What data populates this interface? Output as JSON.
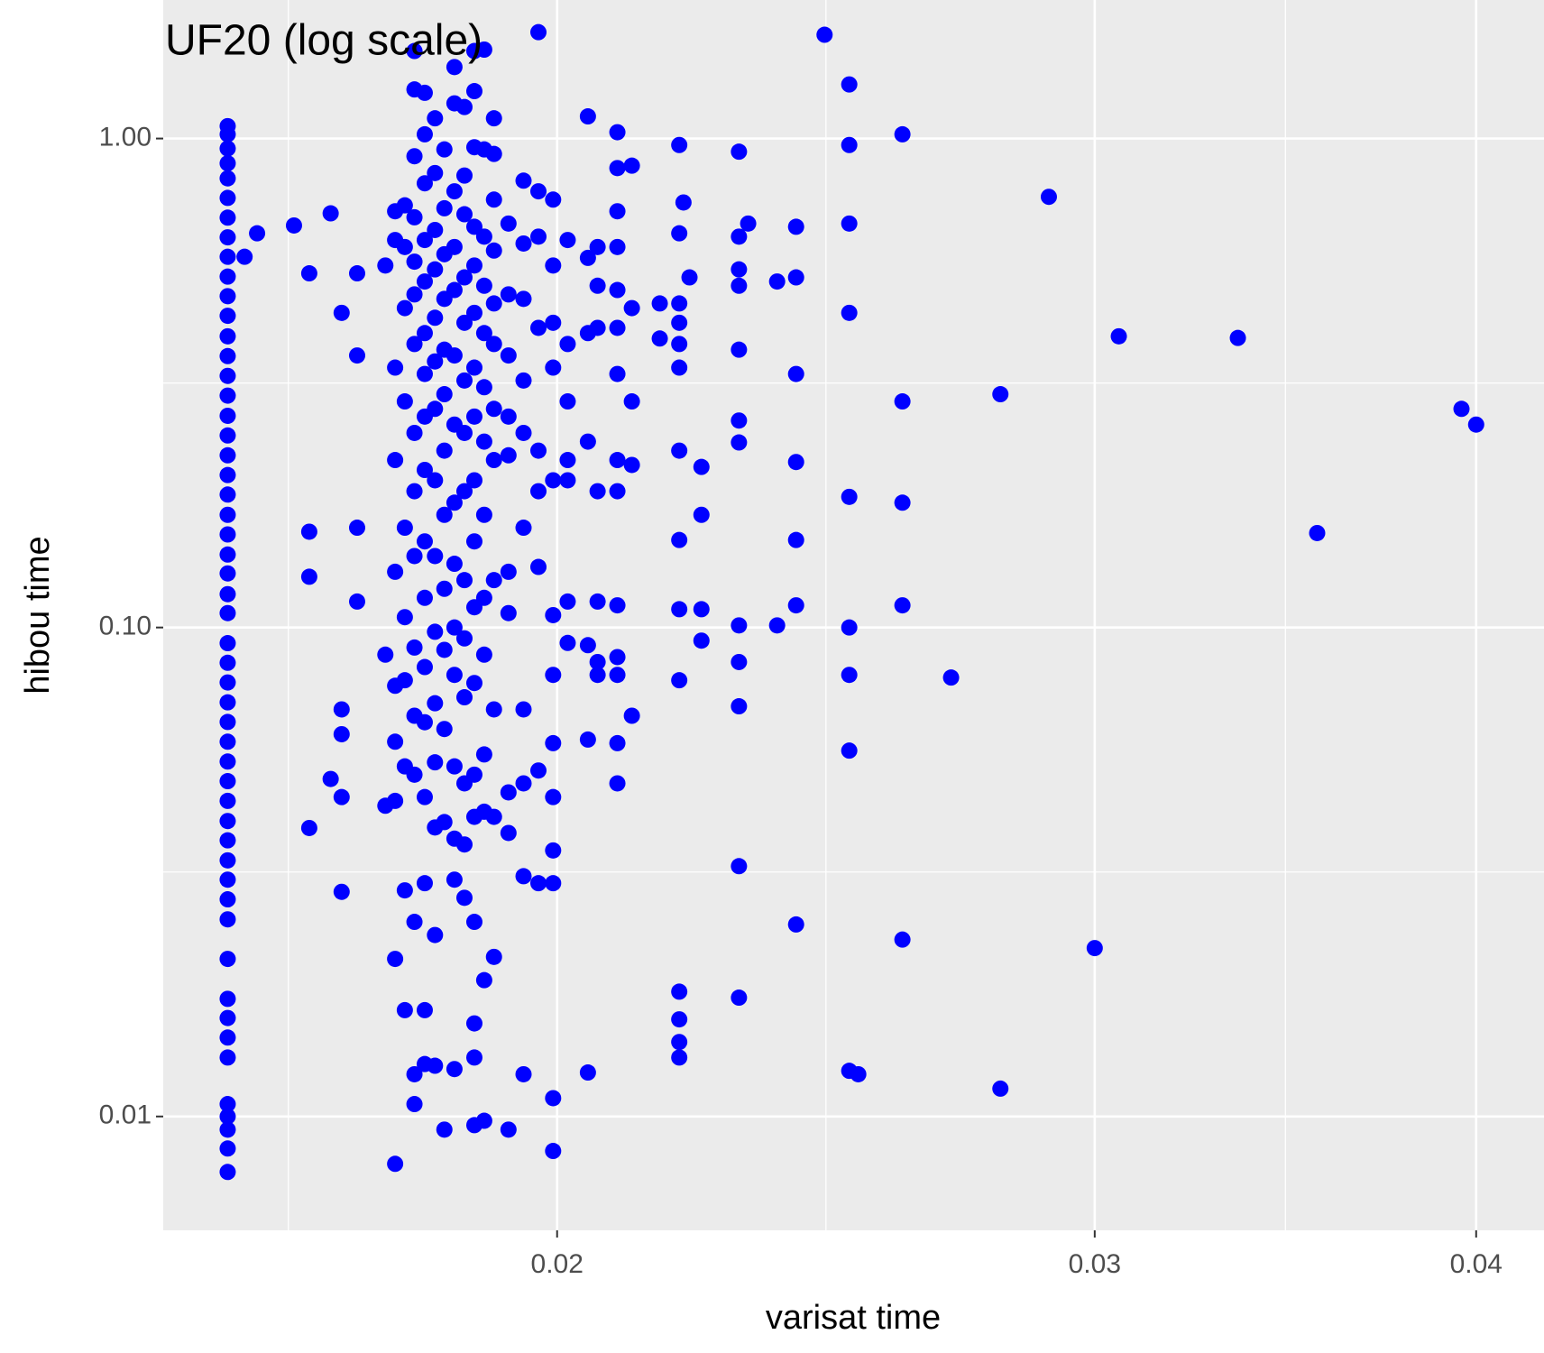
{
  "chart_data": {
    "type": "scatter",
    "title": "UF20 (log scale)",
    "x_label": "varisat time",
    "y_label": "hibou time",
    "color": "#0000ff",
    "grid": true,
    "x_log": true,
    "y_log": true,
    "xlim": [
      0.01486,
      0.0421
    ],
    "ylim": [
      0.00585,
      1.92
    ],
    "xticks": [
      0.02,
      0.03,
      0.04
    ],
    "yticks": [
      {
        "value": 0.01,
        "label": "0.01"
      },
      {
        "value": 0.1,
        "label": "0.10"
      },
      {
        "value": 1,
        "label": "1.00"
      }
    ],
    "x": [
      0.0156,
      0.0156,
      0.0156,
      0.0156,
      0.0156,
      0.0156,
      0.0156,
      0.0156,
      0.0156,
      0.0156,
      0.0156,
      0.0156,
      0.0156,
      0.0156,
      0.0156,
      0.0156,
      0.0156,
      0.0156,
      0.0156,
      0.0156,
      0.0156,
      0.0156,
      0.0156,
      0.0156,
      0.0156,
      0.0156,
      0.0156,
      0.0156,
      0.0156,
      0.0156,
      0.0156,
      0.0156,
      0.0156,
      0.0156,
      0.0156,
      0.0156,
      0.0156,
      0.0156,
      0.0156,
      0.0156,
      0.0156,
      0.0156,
      0.0156,
      0.0156,
      0.0156,
      0.0156,
      0.0156,
      0.0156,
      0.0156,
      0.0156,
      0.0156,
      0.0156,
      0.0158,
      0.01595,
      0.0164,
      0.01659,
      0.01659,
      0.01659,
      0.01659,
      0.01686,
      0.01686,
      0.017,
      0.017,
      0.017,
      0.017,
      0.017,
      0.0172,
      0.0172,
      0.0172,
      0.0172,
      0.01757,
      0.01757,
      0.01757,
      0.0177,
      0.0177,
      0.0177,
      0.0177,
      0.0177,
      0.0177,
      0.0177,
      0.0177,
      0.0177,
      0.0177,
      0.01783,
      0.01783,
      0.01783,
      0.01783,
      0.01783,
      0.01783,
      0.01783,
      0.01783,
      0.01783,
      0.01783,
      0.01796,
      0.01796,
      0.01796,
      0.01796,
      0.01796,
      0.01796,
      0.01796,
      0.01796,
      0.01796,
      0.01796,
      0.01796,
      0.01796,
      0.01796,
      0.01796,
      0.01796,
      0.01796,
      0.0181,
      0.0181,
      0.0181,
      0.0181,
      0.0181,
      0.0181,
      0.0181,
      0.0181,
      0.0181,
      0.0181,
      0.0181,
      0.0181,
      0.0181,
      0.0181,
      0.0181,
      0.0181,
      0.0181,
      0.01824,
      0.01824,
      0.01824,
      0.01824,
      0.01824,
      0.01824,
      0.01824,
      0.01824,
      0.01824,
      0.01824,
      0.01824,
      0.01824,
      0.01824,
      0.01824,
      0.01824,
      0.01837,
      0.01837,
      0.01837,
      0.01837,
      0.01837,
      0.01837,
      0.01837,
      0.01837,
      0.01837,
      0.01837,
      0.01837,
      0.01837,
      0.01837,
      0.01851,
      0.01851,
      0.01851,
      0.01851,
      0.01851,
      0.01851,
      0.01851,
      0.01851,
      0.01851,
      0.01851,
      0.01851,
      0.01851,
      0.01851,
      0.01851,
      0.01851,
      0.01865,
      0.01865,
      0.01865,
      0.01865,
      0.01865,
      0.01865,
      0.01865,
      0.01865,
      0.01865,
      0.01865,
      0.01865,
      0.01865,
      0.01865,
      0.01865,
      0.01879,
      0.01879,
      0.01879,
      0.01879,
      0.01879,
      0.01879,
      0.01879,
      0.01879,
      0.01879,
      0.01879,
      0.01879,
      0.01879,
      0.01879,
      0.01879,
      0.01879,
      0.01879,
      0.01879,
      0.01879,
      0.01893,
      0.01893,
      0.01893,
      0.01893,
      0.01893,
      0.01893,
      0.01893,
      0.01893,
      0.01893,
      0.01893,
      0.01893,
      0.01893,
      0.01893,
      0.01893,
      0.01907,
      0.01907,
      0.01907,
      0.01907,
      0.01907,
      0.01907,
      0.01907,
      0.01907,
      0.01907,
      0.01907,
      0.01907,
      0.01907,
      0.01928,
      0.01928,
      0.01928,
      0.01928,
      0.01928,
      0.01928,
      0.01928,
      0.01928,
      0.01928,
      0.01928,
      0.0195,
      0.0195,
      0.0195,
      0.0195,
      0.0195,
      0.0195,
      0.0195,
      0.0195,
      0.0195,
      0.0195,
      0.01972,
      0.01972,
      0.01972,
      0.01972,
      0.01972,
      0.01972,
      0.01972,
      0.01972,
      0.01972,
      0.01994,
      0.01994,
      0.01994,
      0.01994,
      0.01994,
      0.01994,
      0.01994,
      0.01994,
      0.01994,
      0.01994,
      0.01994,
      0.01994,
      0.01994,
      0.02016,
      0.02016,
      0.02016,
      0.02016,
      0.02016,
      0.02016,
      0.02016,
      0.02047,
      0.02047,
      0.02047,
      0.02047,
      0.02047,
      0.02047,
      0.02047,
      0.02062,
      0.02062,
      0.02062,
      0.02062,
      0.02062,
      0.02062,
      0.02062,
      0.02093,
      0.02093,
      0.02093,
      0.02093,
      0.02093,
      0.02093,
      0.02093,
      0.02093,
      0.02093,
      0.02093,
      0.02093,
      0.02093,
      0.02093,
      0.02093,
      0.02116,
      0.02116,
      0.02116,
      0.02116,
      0.02116,
      0.02161,
      0.02161,
      0.02193,
      0.02193,
      0.02193,
      0.02193,
      0.02193,
      0.02193,
      0.02193,
      0.02193,
      0.02193,
      0.02193,
      0.02193,
      0.02193,
      0.02193,
      0.02193,
      0.022,
      0.0221,
      0.0223,
      0.0223,
      0.0223,
      0.0223,
      0.02294,
      0.02294,
      0.02294,
      0.02294,
      0.02294,
      0.02294,
      0.02294,
      0.02294,
      0.02294,
      0.02294,
      0.02294,
      0.02294,
      0.0231,
      0.02361,
      0.02361,
      0.02395,
      0.02395,
      0.02395,
      0.02395,
      0.02395,
      0.02395,
      0.02395,
      0.02447,
      0.02493,
      0.02493,
      0.02493,
      0.02493,
      0.02493,
      0.02493,
      0.02493,
      0.02493,
      0.02493,
      0.0251,
      0.02595,
      0.02595,
      0.02595,
      0.02595,
      0.02595,
      0.02692,
      0.02794,
      0.02794,
      0.02898,
      0.03,
      0.03055,
      0.03342,
      0.03548,
      0.03956,
      0.04
    ],
    "values": [
      1.06,
      1.02,
      0.954,
      0.89,
      0.829,
      0.756,
      0.689,
      0.628,
      0.573,
      0.522,
      0.476,
      0.434,
      0.394,
      0.359,
      0.327,
      0.298,
      0.271,
      0.247,
      0.225,
      0.205,
      0.187,
      0.17,
      0.155,
      0.141,
      0.129,
      0.117,
      0.107,
      0.0929,
      0.0847,
      0.0772,
      0.0703,
      0.0641,
      0.0584,
      0.0532,
      0.0485,
      0.0442,
      0.0402,
      0.0367,
      0.0334,
      0.0305,
      0.0278,
      0.0253,
      0.021,
      0.0174,
      0.0159,
      0.0145,
      0.0132,
      0.0106,
      0.01,
      0.0094,
      0.0086,
      0.0077,
      0.573,
      0.64,
      0.664,
      0.53,
      0.157,
      0.127,
      0.0389,
      0.703,
      0.049,
      0.44,
      0.068,
      0.0605,
      0.045,
      0.0288,
      0.53,
      0.36,
      0.16,
      0.113,
      0.55,
      0.088,
      0.0432,
      0.71,
      0.62,
      0.34,
      0.22,
      0.13,
      0.076,
      0.0584,
      0.0442,
      0.021,
      0.008,
      0.73,
      0.6,
      0.45,
      0.29,
      0.16,
      0.105,
      0.078,
      0.052,
      0.029,
      0.0165,
      1.51,
      1.26,
      0.92,
      0.69,
      0.56,
      0.48,
      0.38,
      0.25,
      0.19,
      0.14,
      0.091,
      0.066,
      0.05,
      0.025,
      0.0122,
      0.0106,
      1.24,
      1.02,
      0.81,
      0.62,
      0.51,
      0.4,
      0.33,
      0.27,
      0.21,
      0.15,
      0.115,
      0.083,
      0.064,
      0.045,
      0.03,
      0.0165,
      0.0128,
      1.1,
      0.85,
      0.65,
      0.54,
      0.43,
      0.35,
      0.28,
      0.2,
      0.14,
      0.098,
      0.07,
      0.053,
      0.039,
      0.0235,
      0.0127,
      0.95,
      0.72,
      0.58,
      0.47,
      0.37,
      0.3,
      0.23,
      0.17,
      0.12,
      0.09,
      0.062,
      0.04,
      0.0094,
      1.4,
      1.18,
      0.78,
      0.6,
      0.49,
      0.36,
      0.26,
      0.18,
      0.135,
      0.1,
      0.08,
      0.052,
      0.037,
      0.0305,
      0.0125,
      1.16,
      0.84,
      0.7,
      0.52,
      0.42,
      0.32,
      0.25,
      0.19,
      0.125,
      0.095,
      0.072,
      0.048,
      0.036,
      0.028,
      1.51,
      1.25,
      0.96,
      0.66,
      0.55,
      0.44,
      0.34,
      0.27,
      0.2,
      0.15,
      0.11,
      0.077,
      0.05,
      0.041,
      0.025,
      0.0155,
      0.0132,
      0.0096,
      1.52,
      0.95,
      0.63,
      0.5,
      0.4,
      0.31,
      0.24,
      0.17,
      0.115,
      0.088,
      0.055,
      0.042,
      0.019,
      0.0098,
      1.1,
      0.93,
      0.75,
      0.59,
      0.46,
      0.38,
      0.28,
      0.22,
      0.125,
      0.068,
      0.041,
      0.0212,
      0.67,
      0.48,
      0.36,
      0.27,
      0.225,
      0.13,
      0.107,
      0.046,
      0.038,
      0.0094,
      0.82,
      0.61,
      0.47,
      0.32,
      0.25,
      0.16,
      0.068,
      0.048,
      0.031,
      0.0122,
      1.65,
      0.78,
      0.63,
      0.41,
      0.23,
      0.19,
      0.133,
      0.051,
      0.03,
      0.75,
      0.55,
      0.42,
      0.34,
      0.2,
      0.106,
      0.08,
      0.058,
      0.045,
      0.035,
      0.03,
      0.0109,
      0.0085,
      0.62,
      0.38,
      0.29,
      0.22,
      0.2,
      0.113,
      0.093,
      1.11,
      0.57,
      0.4,
      0.24,
      0.092,
      0.059,
      0.0123,
      0.6,
      0.5,
      0.41,
      0.19,
      0.113,
      0.085,
      0.08,
      1.03,
      0.87,
      0.71,
      0.6,
      0.49,
      0.41,
      0.33,
      0.22,
      0.19,
      0.111,
      0.087,
      0.08,
      0.058,
      0.048,
      0.88,
      0.45,
      0.29,
      0.215,
      0.066,
      0.46,
      0.39,
      0.97,
      0.64,
      0.46,
      0.42,
      0.38,
      0.34,
      0.23,
      0.151,
      0.109,
      0.078,
      0.018,
      0.0158,
      0.0142,
      0.0132,
      0.74,
      0.52,
      0.213,
      0.17,
      0.109,
      0.094,
      0.94,
      0.63,
      0.54,
      0.5,
      0.37,
      0.265,
      0.239,
      0.101,
      0.085,
      0.069,
      0.0325,
      0.0175,
      0.67,
      0.51,
      0.101,
      0.66,
      0.52,
      0.33,
      0.218,
      0.151,
      0.111,
      0.0247,
      1.63,
      1.29,
      0.97,
      0.67,
      0.44,
      0.185,
      0.1,
      0.08,
      0.056,
      0.0124,
      0.0122,
      1.02,
      0.29,
      0.18,
      0.111,
      0.023,
      0.079,
      0.3,
      0.0114,
      0.76,
      0.0221,
      0.394,
      0.391,
      0.156,
      0.28,
      0.26
    ]
  }
}
